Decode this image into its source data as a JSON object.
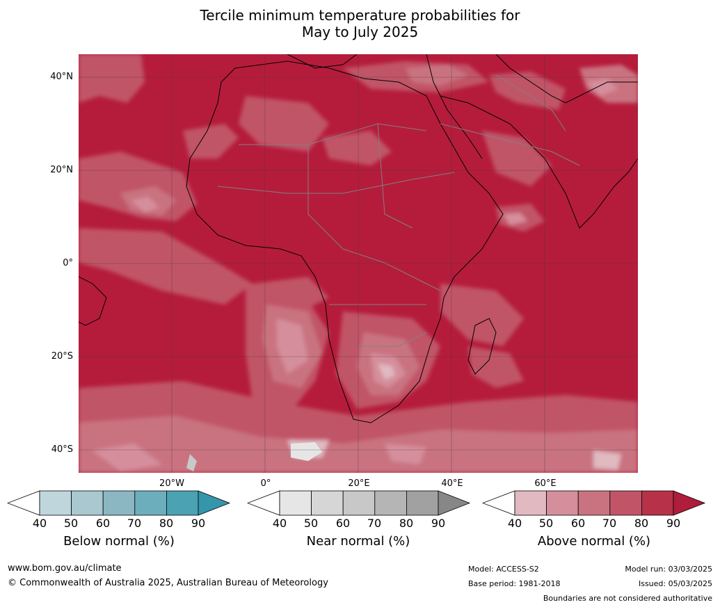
{
  "title": {
    "line1": "Tercile minimum temperature probabilities for",
    "line2": "May to July 2025"
  },
  "map": {
    "lat_labels": [
      "40°N",
      "20°N",
      "0°",
      "20°S",
      "40°S"
    ],
    "lon_labels": [
      "20°W",
      "0°",
      "20°E",
      "40°E",
      "60°E"
    ],
    "colors": {
      "ocean_base": "#b51c3c",
      "land_base": "#b51c3c",
      "coast": "#000000",
      "borders": "#808080",
      "gridlines": "#3a3a3a"
    }
  },
  "colorbars": [
    {
      "title": "Below normal (%)",
      "ticks": [
        "40",
        "50",
        "60",
        "70",
        "80",
        "90"
      ],
      "colors": [
        "#c0d6dd",
        "#a9c8cf",
        "#8bb7c2",
        "#6daebd",
        "#4ba2b3",
        "#3595ab"
      ]
    },
    {
      "title": "Near normal (%)",
      "ticks": [
        "40",
        "50",
        "60",
        "70",
        "80",
        "90"
      ],
      "colors": [
        "#e6e6e6",
        "#d6d6d6",
        "#c8c8c8",
        "#b5b5b5",
        "#a1a1a1",
        "#878787"
      ]
    },
    {
      "title": "Above normal (%)",
      "ticks": [
        "40",
        "50",
        "60",
        "70",
        "80",
        "90"
      ],
      "colors": [
        "#e0b9c1",
        "#d58e9c",
        "#c97380",
        "#c15567",
        "#b73149",
        "#b01c3c"
      ]
    }
  ],
  "footer": {
    "website": "www.bom.gov.au/climate",
    "copyright": "© Commonwealth of Australia 2025, Australian Bureau of Meteorology",
    "model": "Model: ACCESS-S2",
    "base_period": "Base period: 1981-2018",
    "model_run": "Model run: 03/03/2025",
    "issued": "Issued: 05/03/2025",
    "disclaimer": "Boundaries are not considered authoritative"
  }
}
